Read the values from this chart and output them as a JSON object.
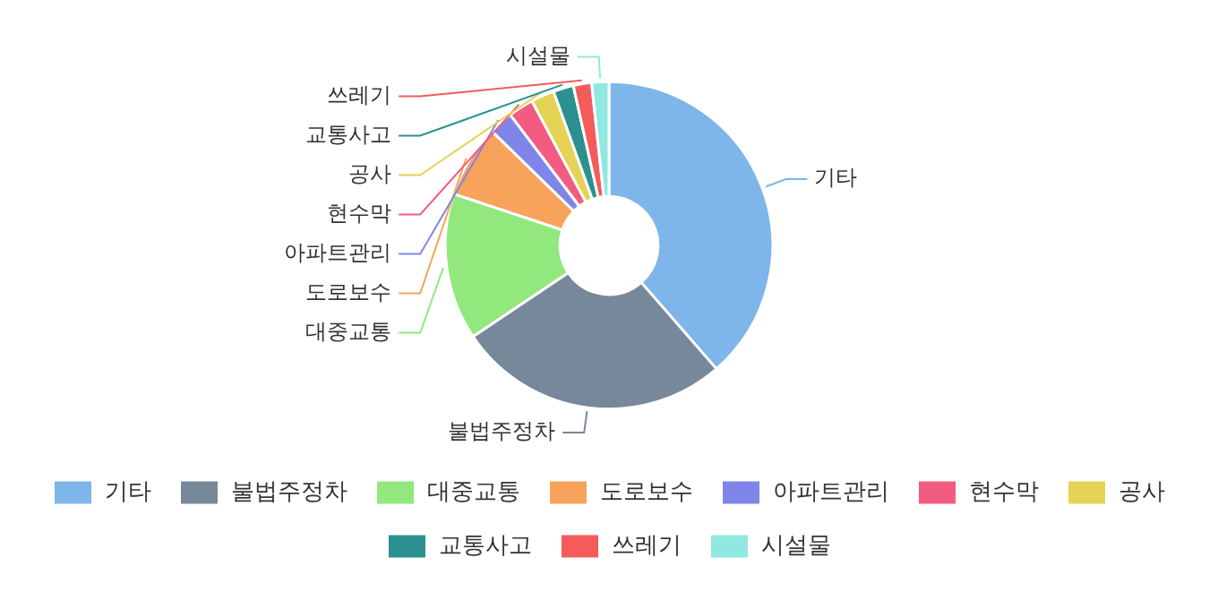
{
  "chart_data": {
    "type": "donut",
    "categories": [
      "기타",
      "불법주정차",
      "대중교통",
      "도로보수",
      "아파트관리",
      "현수막",
      "공사",
      "교통사고",
      "쓰레기",
      "시설물"
    ],
    "values": [
      38.6,
      27.0,
      14.5,
      7.2,
      2.4,
      2.5,
      2.3,
      2.0,
      1.8,
      1.7
    ],
    "colors": [
      "#7eb5ea",
      "#77889a",
      "#92e87d",
      "#f7a35c",
      "#8085e9",
      "#f15c80",
      "#e4d354",
      "#2b908f",
      "#f45b5b",
      "#91e8e1"
    ],
    "legend": "bottom"
  }
}
